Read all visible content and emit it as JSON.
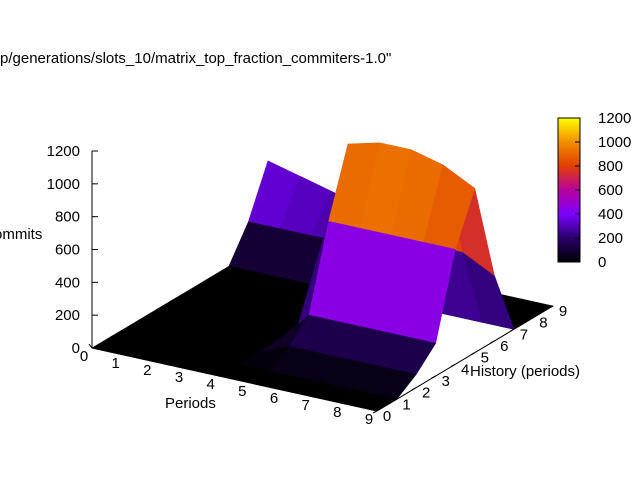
{
  "title": "p/generations/slots_10/matrix_top_fraction_commiters-1.0\"",
  "chart_data": {
    "type": "surface",
    "title": "p/generations/slots_10/matrix_top_fraction_commiters-1.0\"",
    "xlabel": "Periods",
    "ylabel": "History (periods)",
    "zlabel": "ommits",
    "x_ticks": [
      "0",
      "1",
      "2",
      "3",
      "4",
      "5",
      "6",
      "7",
      "8",
      "9"
    ],
    "y_ticks": [
      "0",
      "1",
      "2",
      "3",
      "4",
      "5",
      "6",
      "7",
      "8",
      "9"
    ],
    "z_ticks": [
      "0",
      "200",
      "400",
      "600",
      "800",
      "1000",
      "1200"
    ],
    "zlim": [
      0,
      1200
    ],
    "colorbar": {
      "range": [
        0,
        1200
      ],
      "ticks": [
        "0",
        "200",
        "400",
        "600",
        "800",
        "1000",
        "1200"
      ]
    },
    "grid": false,
    "x": [
      0,
      1,
      2,
      3,
      4,
      5,
      6,
      7,
      8,
      9
    ],
    "y": [
      0,
      1,
      2,
      3,
      4,
      5,
      6,
      7,
      8,
      9
    ],
    "z": [
      [
        0,
        0,
        0,
        0,
        0,
        0,
        0,
        0,
        0,
        0
      ],
      [
        0,
        0,
        0,
        0,
        0,
        0,
        0,
        0,
        0,
        0
      ],
      [
        0,
        0,
        0,
        0,
        0,
        80,
        80,
        80,
        80,
        80
      ],
      [
        0,
        0,
        0,
        0,
        0,
        200,
        200,
        200,
        200,
        200
      ],
      [
        0,
        0,
        0,
        0,
        0,
        700,
        700,
        700,
        700,
        700
      ],
      [
        0,
        0,
        0,
        0,
        0,
        1100,
        1150,
        1150,
        1100,
        1000
      ],
      [
        0,
        0,
        0,
        0,
        0,
        500,
        500,
        500,
        500,
        400
      ],
      [
        0,
        0,
        0,
        0,
        0,
        0,
        0,
        0,
        0,
        0
      ],
      [
        200,
        200,
        200,
        200,
        0,
        0,
        0,
        0,
        0,
        0
      ],
      [
        500,
        450,
        400,
        350,
        0,
        0,
        0,
        0,
        0,
        0
      ]
    ]
  }
}
